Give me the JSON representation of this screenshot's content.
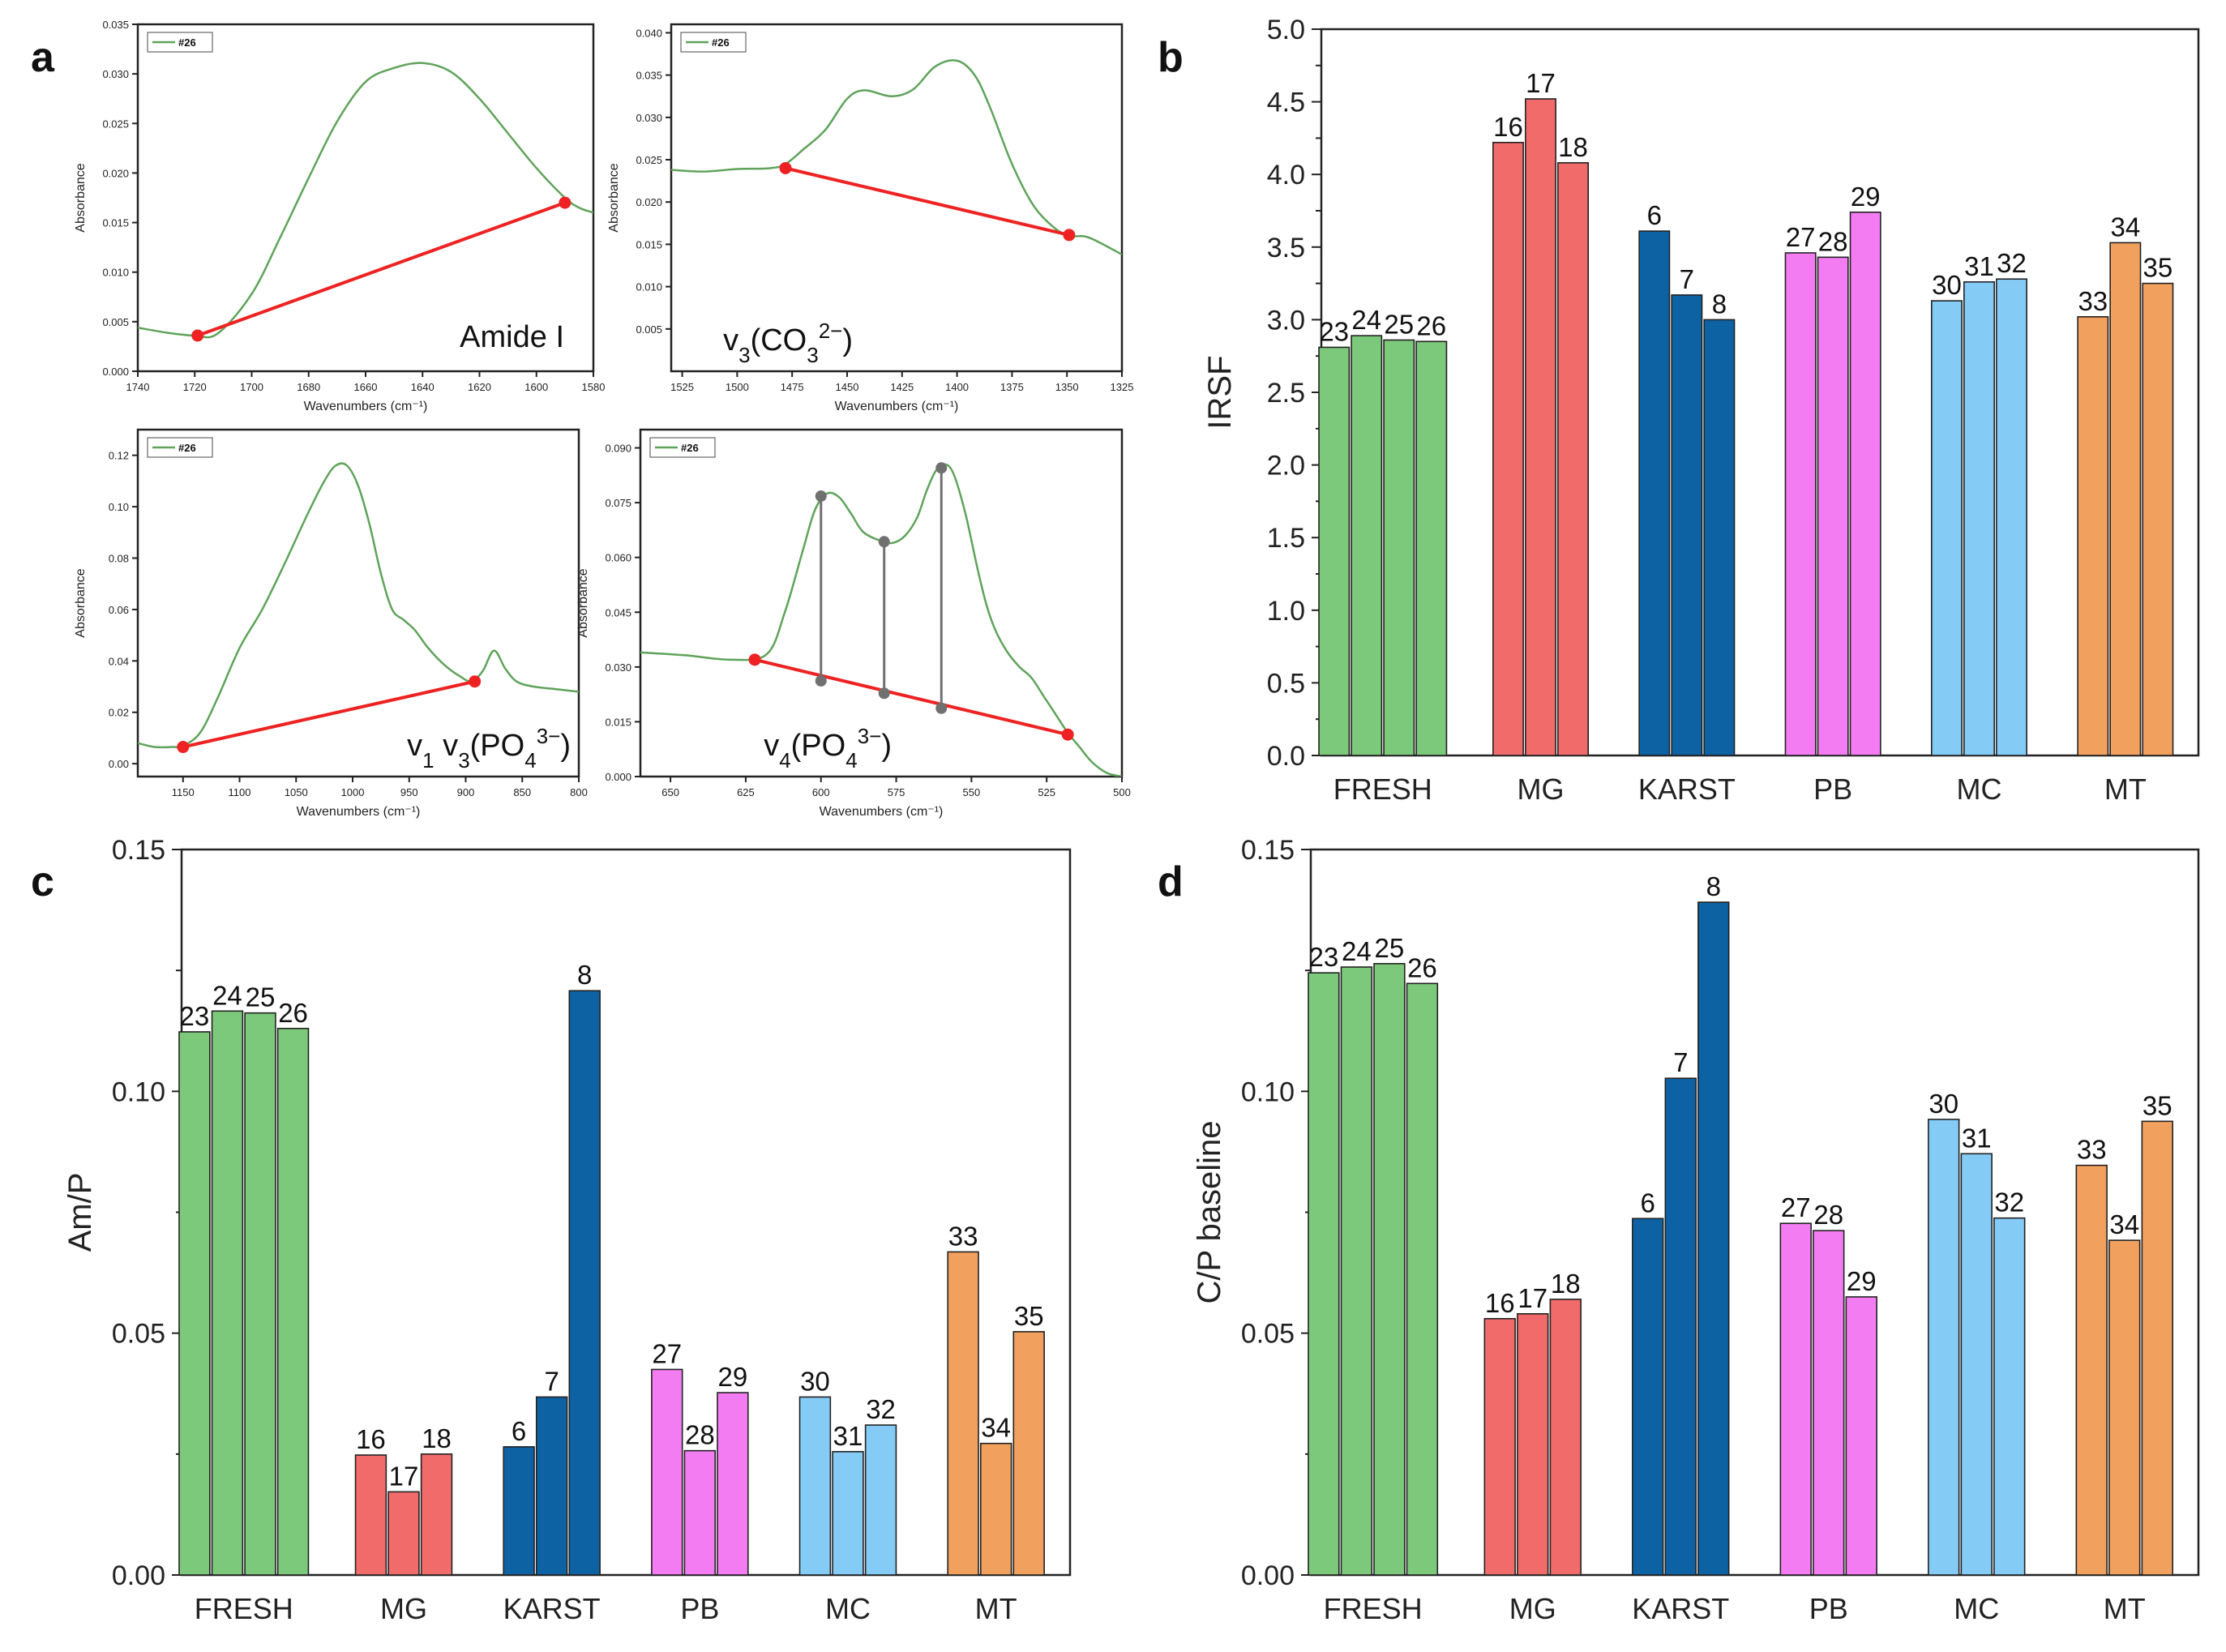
{
  "figure": {
    "panel_letters": [
      "a",
      "b",
      "c",
      "d"
    ]
  },
  "chart_data": [
    {
      "panel": "a1",
      "type": "line",
      "title": "Amide I",
      "xlabel": "Wavenumbers (cm⁻¹)",
      "ylabel": "Absorbance",
      "legend": "#26",
      "legend_position": "top-left",
      "xlim": [
        1740,
        1580
      ],
      "ylim": [
        0,
        0.035
      ],
      "xticks": [
        1740,
        1720,
        1700,
        1680,
        1660,
        1640,
        1620,
        1600,
        1580
      ],
      "yticks": [
        0,
        0.005,
        0.01,
        0.015,
        0.02,
        0.025,
        0.03,
        0.035
      ],
      "ytick_labels": [
        "0.000",
        "0.005",
        "0.010",
        "0.015",
        "0.020",
        "0.025",
        "0.030",
        "0.035"
      ],
      "series": [
        {
          "name": "#26",
          "x": [
            1740,
            1730,
            1720,
            1712,
            1700,
            1690,
            1680,
            1670,
            1660,
            1650,
            1640,
            1630,
            1620,
            1610,
            1600,
            1590,
            1585,
            1580
          ],
          "y": [
            0.0044,
            0.0039,
            0.0036,
            0.0038,
            0.0078,
            0.0135,
            0.0195,
            0.0252,
            0.0292,
            0.0306,
            0.0311,
            0.0302,
            0.0275,
            0.024,
            0.0205,
            0.0175,
            0.0165,
            0.016
          ]
        }
      ],
      "baseline": {
        "x": [
          1719,
          1590
        ],
        "y": [
          0.0036,
          0.017
        ]
      },
      "markers": []
    },
    {
      "panel": "a2",
      "type": "line",
      "title": "ν3(CO3 2−)",
      "title_parts": {
        "base": "v",
        "sub1": "3",
        "mid": "(CO",
        "sub2": "3",
        "sup": "2−",
        "end": ")"
      },
      "xlabel": "Wavenumbers (cm⁻¹)",
      "ylabel": "Absorbance",
      "legend": "#26",
      "legend_position": "top-left",
      "xlim": [
        1530,
        1325
      ],
      "ylim": [
        0,
        0.041
      ],
      "xticks": [
        1525,
        1500,
        1475,
        1450,
        1425,
        1400,
        1375,
        1350,
        1325
      ],
      "yticks": [
        0.005,
        0.01,
        0.015,
        0.02,
        0.025,
        0.03,
        0.035,
        0.04
      ],
      "ytick_labels": [
        "0.005",
        "0.010",
        "0.015",
        "0.020",
        "0.025",
        "0.030",
        "0.035",
        "0.040"
      ],
      "series": [
        {
          "name": "#26",
          "x": [
            1530,
            1515,
            1500,
            1485,
            1478,
            1470,
            1460,
            1450,
            1442,
            1430,
            1420,
            1410,
            1400,
            1392,
            1385,
            1375,
            1365,
            1355,
            1348,
            1340,
            1325
          ],
          "y": [
            0.0238,
            0.0236,
            0.0239,
            0.024,
            0.0245,
            0.0262,
            0.0285,
            0.0322,
            0.0332,
            0.0325,
            0.0333,
            0.036,
            0.0367,
            0.035,
            0.0312,
            0.0245,
            0.0195,
            0.0168,
            0.016,
            0.0158,
            0.0138
          ]
        }
      ],
      "baseline": {
        "x": [
          1478,
          1349
        ],
        "y": [
          0.024,
          0.0161
        ]
      },
      "markers": []
    },
    {
      "panel": "a3",
      "type": "line",
      "title": "ν1 ν3(PO4 3−)",
      "title_parts": {
        "base": "v",
        "sub1": "1",
        "mid": " v",
        "sub2": "3",
        "mid2": "(PO",
        "sub3": "4",
        "sup": "3−",
        "end": ")"
      },
      "xlabel": "Wavenumbers (cm⁻¹)",
      "ylabel": "Absorbance",
      "legend": "#26",
      "legend_position": "top-left",
      "xlim": [
        1190,
        800
      ],
      "ylim": [
        -0.005,
        0.13
      ],
      "xticks": [
        1150,
        1100,
        1050,
        1000,
        950,
        900,
        850,
        800
      ],
      "yticks": [
        0,
        0.02,
        0.04,
        0.06,
        0.08,
        0.1,
        0.12
      ],
      "ytick_labels": [
        "0.00",
        "0.02",
        "0.04",
        "0.06",
        "0.08",
        "0.10",
        "0.12"
      ],
      "series": [
        {
          "name": "#26",
          "x": [
            1190,
            1175,
            1160,
            1150,
            1135,
            1120,
            1100,
            1080,
            1060,
            1040,
            1025,
            1015,
            1005,
            995,
            985,
            975,
            965,
            955,
            945,
            935,
            925,
            915,
            905,
            895,
            885,
            875,
            865,
            855,
            840,
            820,
            800
          ],
          "y": [
            0.008,
            0.0065,
            0.0065,
            0.007,
            0.012,
            0.025,
            0.045,
            0.06,
            0.078,
            0.097,
            0.11,
            0.116,
            0.116,
            0.108,
            0.093,
            0.074,
            0.06,
            0.056,
            0.052,
            0.046,
            0.041,
            0.037,
            0.034,
            0.032,
            0.036,
            0.044,
            0.037,
            0.032,
            0.03,
            0.029,
            0.028
          ]
        }
      ],
      "baseline": {
        "x": [
          1150,
          892
        ],
        "y": [
          0.0065,
          0.032
        ]
      },
      "markers": []
    },
    {
      "panel": "a4",
      "type": "line",
      "title": "ν4(PO4 3−)",
      "title_parts": {
        "base": "v",
        "sub1": "4",
        "mid": "(PO",
        "sub2": "4",
        "sup": "3−",
        "end": ")"
      },
      "xlabel": "Wavenumbers (cm⁻¹)",
      "ylabel": "Absorbance",
      "legend": "#26",
      "legend_position": "top-left",
      "xlim": [
        660,
        500
      ],
      "ylim": [
        0,
        0.095
      ],
      "xticks": [
        650,
        625,
        600,
        575,
        550,
        525,
        500
      ],
      "yticks": [
        0,
        0.015,
        0.03,
        0.045,
        0.06,
        0.075,
        0.09
      ],
      "ytick_labels": [
        "0.000",
        "0.015",
        "0.030",
        "0.045",
        "0.060",
        "0.075",
        "0.090"
      ],
      "series": [
        {
          "name": "#26",
          "x": [
            660,
            645,
            630,
            618,
            612,
            606,
            602,
            598,
            594,
            590,
            586,
            580,
            576,
            572,
            568,
            565,
            562,
            559,
            556,
            552,
            548,
            545,
            542,
            538,
            534,
            530,
            526,
            522,
            518,
            514,
            510,
            505,
            500
          ],
          "y": [
            0.034,
            0.0332,
            0.032,
            0.0335,
            0.045,
            0.062,
            0.073,
            0.0775,
            0.0765,
            0.072,
            0.067,
            0.0645,
            0.064,
            0.066,
            0.071,
            0.078,
            0.0835,
            0.0855,
            0.083,
            0.072,
            0.057,
            0.047,
            0.04,
            0.034,
            0.03,
            0.027,
            0.022,
            0.017,
            0.012,
            0.008,
            0.004,
            0.001,
            0.0
          ]
        }
      ],
      "baseline": {
        "x": [
          622,
          518
        ],
        "y": [
          0.032,
          0.0115
        ]
      },
      "markers": [
        {
          "x": 600,
          "top": 0.0768,
          "bottom": 0.0262
        },
        {
          "x": 579,
          "top": 0.0643,
          "bottom": 0.0228
        },
        {
          "x": 560,
          "top": 0.0845,
          "bottom": 0.0187
        }
      ]
    },
    {
      "panel": "b",
      "type": "bar",
      "ylabel": "IRSF",
      "ylim": [
        0,
        5.0
      ],
      "yticks": [
        0.0,
        0.5,
        1.0,
        1.5,
        2.0,
        2.5,
        3.0,
        3.5,
        4.0,
        4.5,
        5.0
      ],
      "ytick_labels": [
        "0.0",
        "0.5",
        "1.0",
        "1.5",
        "2.0",
        "2.5",
        "3.0",
        "3.5",
        "4.0",
        "4.5",
        "5.0"
      ],
      "categories": [
        "FRESH",
        "MG",
        "KARST",
        "PB",
        "MC",
        "MT"
      ],
      "groups": [
        {
          "category": "FRESH",
          "color": "#7dc97b",
          "labels": [
            "23",
            "24",
            "25",
            "26"
          ],
          "values": [
            2.81,
            2.89,
            2.86,
            2.85
          ]
        },
        {
          "category": "MG",
          "color": "#f26b6b",
          "labels": [
            "16",
            "17",
            "18"
          ],
          "values": [
            4.22,
            4.52,
            4.08
          ]
        },
        {
          "category": "KARST",
          "color": "#0d62a3",
          "labels": [
            "6",
            "7",
            "8"
          ],
          "values": [
            3.61,
            3.17,
            3.0
          ]
        },
        {
          "category": "PB",
          "color": "#f47cf2",
          "labels": [
            "27",
            "28",
            "29"
          ],
          "values": [
            3.46,
            3.43,
            3.74
          ]
        },
        {
          "category": "MC",
          "color": "#84cbf6",
          "labels": [
            "30",
            "31",
            "32"
          ],
          "values": [
            3.13,
            3.26,
            3.28
          ]
        },
        {
          "category": "MT",
          "color": "#f2a05e",
          "labels": [
            "33",
            "34",
            "35"
          ],
          "values": [
            3.02,
            3.53,
            3.25
          ]
        }
      ]
    },
    {
      "panel": "c",
      "type": "bar",
      "ylabel": "Am/P",
      "ylim": [
        0,
        0.15
      ],
      "yticks": [
        0.0,
        0.05,
        0.1,
        0.15
      ],
      "ytick_labels": [
        "0.00",
        "0.05",
        "0.10",
        "0.15"
      ],
      "categories": [
        "FRESH",
        "MG",
        "KARST",
        "PB",
        "MC",
        "MT"
      ],
      "groups": [
        {
          "category": "FRESH",
          "color": "#7dc97b",
          "labels": [
            "23",
            "24",
            "25",
            "26"
          ],
          "values": [
            0.1123,
            0.1166,
            0.1162,
            0.113
          ]
        },
        {
          "category": "MG",
          "color": "#f26b6b",
          "labels": [
            "16",
            "17",
            "18"
          ],
          "values": [
            0.0248,
            0.0172,
            0.025
          ]
        },
        {
          "category": "KARST",
          "color": "#0d62a3",
          "labels": [
            "6",
            "7",
            "8"
          ],
          "values": [
            0.0265,
            0.0368,
            0.1208
          ]
        },
        {
          "category": "PB",
          "color": "#f47cf2",
          "labels": [
            "27",
            "28",
            "29"
          ],
          "values": [
            0.0425,
            0.0257,
            0.0377
          ]
        },
        {
          "category": "MC",
          "color": "#84cbf6",
          "labels": [
            "30",
            "31",
            "32"
          ],
          "values": [
            0.0368,
            0.0255,
            0.031
          ]
        },
        {
          "category": "MT",
          "color": "#f2a05e",
          "labels": [
            "33",
            "34",
            "35"
          ],
          "values": [
            0.0668,
            0.0272,
            0.0503
          ]
        }
      ]
    },
    {
      "panel": "d",
      "type": "bar",
      "ylabel": "C/P baseline",
      "ylim": [
        0,
        0.15
      ],
      "yticks": [
        0.0,
        0.05,
        0.1,
        0.15
      ],
      "ytick_labels": [
        "0.00",
        "0.05",
        "0.10",
        "0.15"
      ],
      "categories": [
        "FRESH",
        "MG",
        "KARST",
        "PB",
        "MC",
        "MT"
      ],
      "groups": [
        {
          "category": "FRESH",
          "color": "#7dc97b",
          "labels": [
            "23",
            "24",
            "25",
            "26"
          ],
          "values": [
            0.1245,
            0.1257,
            0.1264,
            0.1223
          ]
        },
        {
          "category": "MG",
          "color": "#f26b6b",
          "labels": [
            "16",
            "17",
            "18"
          ],
          "values": [
            0.053,
            0.054,
            0.057
          ]
        },
        {
          "category": "KARST",
          "color": "#0d62a3",
          "labels": [
            "6",
            "7",
            "8"
          ],
          "values": [
            0.0737,
            0.1027,
            0.1391
          ]
        },
        {
          "category": "PB",
          "color": "#f47cf2",
          "labels": [
            "27",
            "28",
            "29"
          ],
          "values": [
            0.0727,
            0.0712,
            0.0575
          ]
        },
        {
          "category": "MC",
          "color": "#84cbf6",
          "labels": [
            "30",
            "31",
            "32"
          ],
          "values": [
            0.0942,
            0.0871,
            0.0738
          ]
        },
        {
          "category": "MT",
          "color": "#f2a05e",
          "labels": [
            "33",
            "34",
            "35"
          ],
          "values": [
            0.0847,
            0.0692,
            0.0938
          ]
        }
      ]
    }
  ]
}
